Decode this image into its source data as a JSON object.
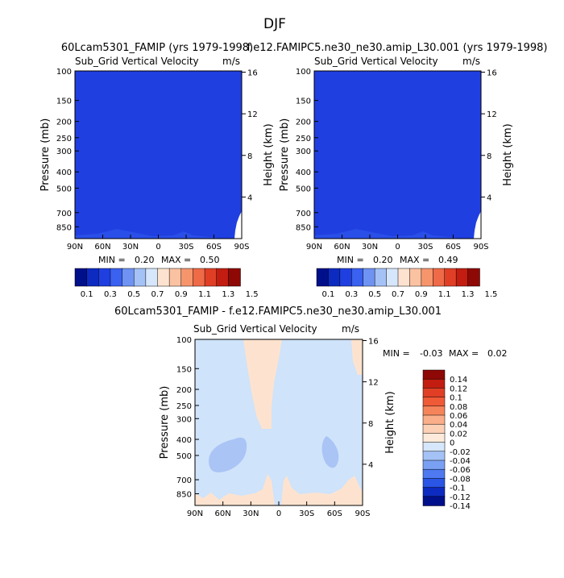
{
  "figure": {
    "title": "DJF"
  },
  "colors": {
    "field_blue": "#1f3fe0",
    "diff_light_blue": "#cfe3fa",
    "diff_mid_blue": "#a9c4f5",
    "diff_peach": "#fde3cf",
    "white": "#ffffff"
  },
  "chart_data": [
    {
      "type": "contour",
      "panel": "left",
      "title": "60Lcam5301_FAMIP (yrs 1979-1998)",
      "subtitle": "Sub_Grid Vertical Velocity",
      "units": "m/s",
      "ylabel": "Pressure (mb)",
      "y2label": "Height (km)",
      "pressure_ticks": [
        "100",
        "150",
        "200",
        "250",
        "300",
        "400",
        "500",
        "700",
        "850"
      ],
      "height_ticks": [
        "16",
        "12",
        "8",
        "4"
      ],
      "lat_ticks": [
        "90N",
        "60N",
        "30N",
        "0",
        "30S",
        "60S",
        "90S"
      ],
      "min_label": "MIN =",
      "min_value": "0.20",
      "max_label": "MAX =",
      "max_value": "0.50",
      "colorbar_labels": [
        "0.1",
        "0.3",
        "0.5",
        "0.7",
        "0.9",
        "1.1",
        "1.3",
        "1.5"
      ],
      "colorbar_colors": [
        "#000f8a",
        "#0d2bc0",
        "#1f3fe0",
        "#3a61f0",
        "#6e93f3",
        "#a5c2f6",
        "#d6e6fb",
        "#fde3cf",
        "#fbc2a2",
        "#f6956c",
        "#ef6a47",
        "#e03f26",
        "#c21d10",
        "#8e0805"
      ],
      "ylim": [
        1000,
        100
      ],
      "xlim": [
        "90N",
        "90S"
      ]
    },
    {
      "type": "contour",
      "panel": "right",
      "title": "f.e12.FAMIPC5.ne30_ne30.amip_L30.001 (yrs 1979-1998)",
      "subtitle": "Sub_Grid Vertical Velocity",
      "units": "m/s",
      "ylabel": "Pressure (mb)",
      "y2label": "Height (km)",
      "pressure_ticks": [
        "100",
        "150",
        "200",
        "250",
        "300",
        "400",
        "500",
        "700",
        "850"
      ],
      "height_ticks": [
        "16",
        "12",
        "8",
        "4"
      ],
      "lat_ticks": [
        "90N",
        "60N",
        "30N",
        "0",
        "30S",
        "60S",
        "90S"
      ],
      "min_label": "MIN =",
      "min_value": "0.20",
      "max_label": "MAX =",
      "max_value": "0.49",
      "colorbar_labels": [
        "0.1",
        "0.3",
        "0.5",
        "0.7",
        "0.9",
        "1.1",
        "1.3",
        "1.5"
      ],
      "colorbar_colors": [
        "#000f8a",
        "#0d2bc0",
        "#1f3fe0",
        "#3a61f0",
        "#6e93f3",
        "#a5c2f6",
        "#d6e6fb",
        "#fde3cf",
        "#fbc2a2",
        "#f6956c",
        "#ef6a47",
        "#e03f26",
        "#c21d10",
        "#8e0805"
      ],
      "ylim": [
        1000,
        100
      ],
      "xlim": [
        "90N",
        "90S"
      ]
    },
    {
      "type": "contour",
      "panel": "difference",
      "title": "60Lcam5301_FAMIP - f.e12.FAMIPC5.ne30_ne30.amip_L30.001",
      "subtitle": "Sub_Grid Vertical Velocity",
      "units": "m/s",
      "ylabel": "Pressure (mb)",
      "y2label": "Height (km)",
      "pressure_ticks": [
        "100",
        "150",
        "200",
        "250",
        "300",
        "400",
        "500",
        "700",
        "850"
      ],
      "height_ticks": [
        "16",
        "12",
        "8",
        "4"
      ],
      "lat_ticks": [
        "90N",
        "60N",
        "30N",
        "0",
        "30S",
        "60S",
        "90S"
      ],
      "min_label": "MIN =",
      "min_value": "-0.03",
      "max_label": "MAX =",
      "max_value": "0.02",
      "colorbar_labels": [
        "0.14",
        "0.12",
        "0.1",
        "0.08",
        "0.06",
        "0.04",
        "0.02",
        "0",
        "-0.02",
        "-0.04",
        "-0.06",
        "-0.08",
        "-0.1",
        "-0.12",
        "-0.14"
      ],
      "colorbar_colors": [
        "#8e0805",
        "#c21d10",
        "#e03f26",
        "#ef5a37",
        "#f6845a",
        "#fbae8a",
        "#fcd0b5",
        "#fdeadb",
        "#d6e6fb",
        "#a5c2f6",
        "#7aa0f3",
        "#4e79f0",
        "#2a55e5",
        "#0d2bc0",
        "#000f8a"
      ],
      "ylim": [
        1000,
        100
      ],
      "xlim": [
        "90N",
        "90S"
      ]
    }
  ]
}
